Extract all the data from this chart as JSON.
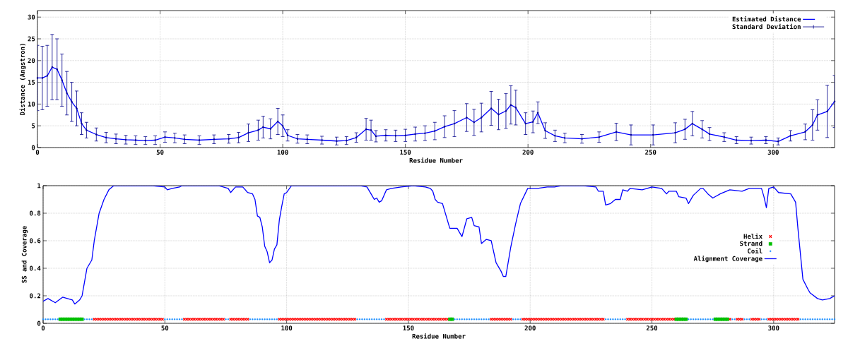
{
  "chart_data": [
    {
      "type": "line",
      "xlabel": "Residue Number",
      "ylabel": "Distance (Angstron)",
      "xlim": [
        0,
        325
      ],
      "ylim": [
        0,
        31.5
      ],
      "xticks": [
        0,
        50,
        100,
        150,
        200,
        250,
        300
      ],
      "yticks": [
        0,
        5,
        10,
        15,
        20,
        25,
        30
      ],
      "grid": true,
      "legend": "top right",
      "series": [
        {
          "name": "Estimated Distance",
          "color": "#0000ff",
          "marker": "none",
          "x": [
            0,
            2,
            4,
            6,
            8,
            10,
            12,
            14,
            16,
            18,
            20,
            24,
            28,
            32,
            36,
            40,
            44,
            48,
            52,
            56,
            60,
            66,
            72,
            78,
            82,
            86,
            90,
            92,
            95,
            98,
            100,
            102,
            106,
            110,
            116,
            122,
            126,
            130,
            134,
            136,
            138,
            142,
            146,
            150,
            154,
            158,
            162,
            166,
            170,
            175,
            178,
            181,
            185,
            188,
            191,
            193,
            195,
            199,
            202,
            204,
            207,
            211,
            215,
            222,
            229,
            236,
            242,
            251,
            260,
            264,
            267,
            271,
            274,
            280,
            285,
            291,
            297,
            302,
            307,
            313,
            316,
            318,
            322,
            325
          ],
          "values": [
            16,
            16,
            16.5,
            18.5,
            18,
            15.5,
            12.5,
            10.5,
            9,
            5.5,
            4,
            3,
            2.3,
            2,
            1.8,
            1.7,
            1.6,
            1.7,
            2.4,
            2.2,
            1.9,
            1.7,
            1.9,
            2,
            2.3,
            3.4,
            4,
            4.7,
            4.3,
            6,
            5,
            2.8,
            2,
            1.9,
            1.7,
            1.5,
            1.6,
            2.3,
            4.2,
            4,
            2.6,
            2.8,
            2.7,
            2.8,
            3.1,
            3.3,
            3.8,
            4.8,
            5.5,
            6.9,
            5.8,
            6.9,
            9,
            7.6,
            8.4,
            9.8,
            9.2,
            5.5,
            5.9,
            8,
            3.9,
            2.7,
            2.2,
            2,
            2.4,
            3.6,
            2.9,
            2.9,
            3.4,
            4.2,
            5.5,
            4.2,
            3.1,
            2.4,
            1.7,
            1.6,
            1.7,
            1.4,
            2.7,
            3.6,
            5.2,
            7.5,
            8.3,
            10.6
          ]
        },
        {
          "name": "Standard Deviation",
          "type": "scatter",
          "color": "#00008b",
          "marker": "circle",
          "x": [
            0,
            2,
            4,
            6,
            8,
            10,
            12,
            14,
            16,
            18,
            20,
            24,
            28,
            32,
            36,
            40,
            44,
            48,
            52,
            56,
            60,
            66,
            72,
            78,
            82,
            86,
            90,
            92,
            95,
            98,
            100,
            102,
            106,
            110,
            116,
            122,
            126,
            130,
            134,
            136,
            138,
            142,
            146,
            150,
            154,
            158,
            162,
            166,
            170,
            175,
            178,
            181,
            185,
            188,
            191,
            193,
            195,
            199,
            202,
            204,
            207,
            211,
            215,
            222,
            229,
            236,
            242,
            251,
            260,
            264,
            267,
            271,
            274,
            280,
            285,
            291,
            297,
            302,
            307,
            313,
            316,
            318,
            322,
            325
          ],
          "values": [
            16,
            16,
            16.5,
            18.5,
            18,
            15.5,
            12.5,
            10.5,
            9,
            5.5,
            4,
            3,
            2.3,
            2,
            1.8,
            1.7,
            1.6,
            1.7,
            2.4,
            2.2,
            1.9,
            1.7,
            1.9,
            2,
            2.3,
            3.4,
            4,
            4.7,
            4.3,
            6,
            5,
            2.8,
            2,
            1.9,
            1.7,
            1.5,
            1.6,
            2.3,
            4.2,
            4,
            2.6,
            2.8,
            2.7,
            2.8,
            3.1,
            3.3,
            3.8,
            4.8,
            5.5,
            6.9,
            5.8,
            6.9,
            9,
            7.6,
            8.4,
            9.8,
            9.2,
            5.5,
            5.9,
            8,
            3.9,
            2.7,
            2.2,
            2,
            2.4,
            3.6,
            2.9,
            2.9,
            3.4,
            4.2,
            5.5,
            4.2,
            3.1,
            2.4,
            1.7,
            1.6,
            1.7,
            1.4,
            2.7,
            3.6,
            5.2,
            7.5,
            8.3,
            10.6
          ],
          "errors": [
            7.5,
            7.3,
            7,
            7.5,
            7,
            6,
            5,
            4.5,
            4,
            2.5,
            1.8,
            1.5,
            1.2,
            1.1,
            1,
            1,
            0.9,
            1,
            1.2,
            1.1,
            1,
            1,
            1,
            1,
            1.2,
            2,
            2.3,
            2.5,
            2.3,
            3,
            2.5,
            1.3,
            1,
            1,
            0.9,
            0.9,
            0.9,
            1.1,
            2.5,
            2.3,
            1.3,
            1.3,
            1.3,
            1.4,
            1.6,
            1.7,
            2,
            2.5,
            3,
            3.2,
            3,
            3.3,
            3.9,
            3.5,
            4,
            4.4,
            4,
            2.5,
            2.5,
            2.5,
            1.8,
            1.3,
            1.1,
            1,
            1.2,
            2,
            2.3,
            2.3,
            2.3,
            2.3,
            2.8,
            2,
            1.5,
            1,
            0.8,
            0.8,
            0.8,
            0.8,
            1.2,
            1.8,
            3.5,
            3.5,
            6,
            6
          ]
        }
      ]
    },
    {
      "type": "line",
      "xlabel": "Residue Number",
      "ylabel": "SS and Coverage",
      "xlim": [
        0,
        325
      ],
      "ylim": [
        0,
        1
      ],
      "xticks": [
        0,
        50,
        100,
        150,
        200,
        250,
        300
      ],
      "yticks": [
        0,
        0.2,
        0.4,
        0.6,
        0.8,
        1
      ],
      "grid": true,
      "legend": "right",
      "series": [
        {
          "name": "Helix",
          "type": "scatter",
          "color": "#ff0000",
          "marker": "cross",
          "x": [
            21,
            22,
            23,
            24,
            25,
            26,
            27,
            28,
            29,
            30,
            31,
            32,
            33,
            34,
            35,
            36,
            37,
            38,
            39,
            40,
            41,
            42,
            43,
            44,
            45,
            46,
            47,
            48,
            49,
            58,
            59,
            60,
            61,
            62,
            63,
            64,
            65,
            66,
            67,
            68,
            69,
            70,
            71,
            72,
            73,
            74,
            77,
            78,
            79,
            80,
            81,
            82,
            83,
            84,
            97,
            98,
            99,
            100,
            101,
            102,
            103,
            104,
            105,
            106,
            107,
            108,
            109,
            110,
            111,
            112,
            113,
            114,
            115,
            116,
            117,
            118,
            119,
            120,
            121,
            122,
            123,
            124,
            125,
            126,
            127,
            128,
            141,
            142,
            143,
            144,
            145,
            146,
            147,
            148,
            149,
            150,
            151,
            152,
            153,
            154,
            155,
            156,
            157,
            158,
            159,
            160,
            161,
            162,
            163,
            164,
            165,
            166,
            184,
            185,
            186,
            187,
            188,
            189,
            190,
            191,
            192,
            197,
            198,
            199,
            200,
            201,
            202,
            203,
            204,
            205,
            206,
            207,
            208,
            209,
            210,
            211,
            212,
            213,
            214,
            215,
            216,
            217,
            218,
            219,
            220,
            221,
            222,
            223,
            224,
            225,
            226,
            227,
            228,
            229,
            230,
            240,
            241,
            242,
            243,
            244,
            245,
            246,
            247,
            248,
            249,
            250,
            251,
            252,
            253,
            254,
            255,
            256,
            257,
            258,
            259,
            282,
            285,
            286,
            287,
            291,
            292,
            293,
            294,
            298,
            299,
            300,
            301,
            302,
            303,
            304,
            305,
            306,
            307,
            308,
            309,
            310
          ],
          "values": [
            0.03,
            0.03,
            0.03,
            0.03,
            0.03,
            0.03,
            0.03,
            0.03,
            0.03,
            0.03,
            0.03,
            0.03,
            0.03,
            0.03,
            0.03,
            0.03,
            0.03,
            0.03,
            0.03,
            0.03,
            0.03,
            0.03,
            0.03,
            0.03,
            0.03,
            0.03,
            0.03,
            0.03,
            0.03,
            0.03,
            0.03,
            0.03,
            0.03,
            0.03,
            0.03,
            0.03,
            0.03,
            0.03,
            0.03,
            0.03,
            0.03,
            0.03,
            0.03,
            0.03,
            0.03,
            0.03,
            0.03,
            0.03,
            0.03,
            0.03,
            0.03,
            0.03,
            0.03,
            0.03,
            0.03,
            0.03,
            0.03,
            0.03,
            0.03,
            0.03,
            0.03,
            0.03,
            0.03,
            0.03,
            0.03,
            0.03,
            0.03,
            0.03,
            0.03,
            0.03,
            0.03,
            0.03,
            0.03,
            0.03,
            0.03,
            0.03,
            0.03,
            0.03,
            0.03,
            0.03,
            0.03,
            0.03,
            0.03,
            0.03,
            0.03,
            0.03,
            0.03,
            0.03,
            0.03,
            0.03,
            0.03,
            0.03,
            0.03,
            0.03,
            0.03,
            0.03,
            0.03,
            0.03,
            0.03,
            0.03,
            0.03,
            0.03,
            0.03,
            0.03,
            0.03,
            0.03,
            0.03,
            0.03,
            0.03,
            0.03,
            0.03,
            0.03,
            0.03,
            0.03,
            0.03,
            0.03,
            0.03,
            0.03,
            0.03,
            0.03,
            0.03,
            0.03,
            0.03,
            0.03,
            0.03,
            0.03,
            0.03,
            0.03,
            0.03,
            0.03,
            0.03,
            0.03,
            0.03,
            0.03,
            0.03,
            0.03,
            0.03,
            0.03,
            0.03,
            0.03,
            0.03,
            0.03,
            0.03,
            0.03,
            0.03,
            0.03,
            0.03,
            0.03,
            0.03,
            0.03,
            0.03,
            0.03,
            0.03,
            0.03,
            0.03,
            0.03,
            0.03,
            0.03,
            0.03,
            0.03,
            0.03,
            0.03,
            0.03,
            0.03,
            0.03,
            0.03,
            0.03,
            0.03,
            0.03,
            0.03,
            0.03,
            0.03,
            0.03,
            0.03,
            0.03,
            0.03,
            0.03,
            0.03,
            0.03,
            0.03,
            0.03,
            0.03,
            0.03,
            0.03,
            0.03,
            0.03,
            0.03,
            0.03,
            0.03,
            0.03,
            0.03,
            0.03,
            0.03,
            0.03,
            0.03,
            0.03
          ]
        },
        {
          "name": "Strand",
          "type": "scatter",
          "color": "#00c000",
          "marker": "square",
          "x": [
            7,
            8,
            9,
            10,
            11,
            12,
            13,
            14,
            15,
            16,
            167,
            168,
            260,
            261,
            262,
            263,
            264,
            276,
            277,
            278,
            279,
            280,
            281
          ],
          "values": [
            0.03,
            0.03,
            0.03,
            0.03,
            0.03,
            0.03,
            0.03,
            0.03,
            0.03,
            0.03,
            0.03,
            0.03,
            0.03,
            0.03,
            0.03,
            0.03,
            0.03,
            0.03,
            0.03,
            0.03,
            0.03,
            0.03,
            0.03
          ]
        },
        {
          "name": "Coil",
          "type": "scatter",
          "color": "#1e90ff",
          "marker": "circle",
          "x": [
            0,
            1,
            2,
            3,
            4,
            5,
            6,
            17,
            18,
            19,
            20,
            50,
            51,
            52,
            53,
            54,
            55,
            56,
            57,
            75,
            76,
            85,
            86,
            87,
            88,
            89,
            90,
            91,
            92,
            93,
            94,
            95,
            96,
            129,
            130,
            131,
            132,
            133,
            134,
            135,
            136,
            137,
            138,
            139,
            140,
            169,
            170,
            171,
            172,
            173,
            174,
            175,
            176,
            177,
            178,
            179,
            180,
            181,
            182,
            183,
            193,
            194,
            195,
            196,
            231,
            232,
            233,
            234,
            235,
            236,
            237,
            238,
            239,
            265,
            266,
            267,
            268,
            269,
            270,
            271,
            272,
            273,
            274,
            275,
            283,
            284,
            288,
            289,
            290,
            295,
            296,
            297,
            311,
            312,
            313,
            314,
            315,
            316,
            317,
            318,
            319,
            320,
            321,
            322,
            323,
            324,
            325
          ],
          "values": [
            0.03,
            0.03,
            0.03,
            0.03,
            0.03,
            0.03,
            0.03,
            0.03,
            0.03,
            0.03,
            0.03,
            0.03,
            0.03,
            0.03,
            0.03,
            0.03,
            0.03,
            0.03,
            0.03,
            0.03,
            0.03,
            0.03,
            0.03,
            0.03,
            0.03,
            0.03,
            0.03,
            0.03,
            0.03,
            0.03,
            0.03,
            0.03,
            0.03,
            0.03,
            0.03,
            0.03,
            0.03,
            0.03,
            0.03,
            0.03,
            0.03,
            0.03,
            0.03,
            0.03,
            0.03,
            0.03,
            0.03,
            0.03,
            0.03,
            0.03,
            0.03,
            0.03,
            0.03,
            0.03,
            0.03,
            0.03,
            0.03,
            0.03,
            0.03,
            0.03,
            0.03,
            0.03,
            0.03,
            0.03,
            0.03,
            0.03,
            0.03,
            0.03,
            0.03,
            0.03,
            0.03,
            0.03,
            0.03,
            0.03,
            0.03,
            0.03,
            0.03,
            0.03,
            0.03,
            0.03,
            0.03,
            0.03,
            0.03,
            0.03,
            0.03,
            0.03,
            0.03,
            0.03,
            0.03,
            0.03,
            0.03,
            0.03,
            0.03,
            0.03,
            0.03,
            0.03,
            0.03,
            0.03,
            0.03,
            0.03,
            0.03,
            0.03,
            0.03,
            0.03,
            0.03,
            0.03,
            0.03
          ]
        },
        {
          "name": "Alignment Coverage",
          "color": "#0000ff",
          "marker": "none",
          "x": [
            0,
            2,
            5,
            8,
            10,
            12,
            13,
            15,
            16,
            18,
            20,
            21,
            23,
            25,
            27,
            29,
            45,
            50,
            51,
            53,
            56,
            57,
            72,
            76,
            77,
            79,
            82,
            84,
            86,
            87,
            88,
            89,
            90,
            91,
            92,
            93,
            94,
            95,
            96,
            97,
            98,
            99,
            100,
            102,
            130,
            133,
            135,
            136,
            137,
            138,
            139,
            141,
            143,
            147,
            152,
            157,
            159,
            160,
            161,
            162,
            164,
            167,
            170,
            172,
            174,
            176,
            177,
            179,
            180,
            182,
            184,
            186,
            188,
            189,
            190,
            192,
            194,
            196,
            199,
            203,
            207,
            210,
            213,
            222,
            227,
            228,
            230,
            231,
            233,
            235,
            237,
            238,
            240,
            241,
            246,
            250,
            254,
            256,
            257,
            260,
            261,
            264,
            265,
            267,
            270,
            271,
            273,
            275,
            278,
            282,
            287,
            290,
            295,
            296,
            297,
            298,
            300,
            302,
            307,
            309,
            310,
            312,
            314,
            315,
            318,
            320,
            323,
            325
          ],
          "values": [
            0.16,
            0.18,
            0.15,
            0.19,
            0.18,
            0.17,
            0.14,
            0.17,
            0.2,
            0.4,
            0.46,
            0.6,
            0.8,
            0.9,
            0.97,
            1,
            1,
            0.99,
            0.97,
            0.98,
            0.99,
            1,
            1,
            0.98,
            0.95,
            0.99,
            0.99,
            0.95,
            0.94,
            0.9,
            0.78,
            0.77,
            0.7,
            0.56,
            0.52,
            0.44,
            0.46,
            0.54,
            0.57,
            0.75,
            0.85,
            0.94,
            0.95,
            1,
            1,
            0.99,
            0.93,
            0.9,
            0.91,
            0.88,
            0.89,
            0.97,
            0.98,
            0.99,
            1,
            0.99,
            0.98,
            0.96,
            0.9,
            0.88,
            0.87,
            0.69,
            0.69,
            0.63,
            0.76,
            0.77,
            0.71,
            0.7,
            0.58,
            0.61,
            0.6,
            0.44,
            0.38,
            0.34,
            0.34,
            0.55,
            0.72,
            0.87,
            0.98,
            0.98,
            0.99,
            0.99,
            1,
            1,
            0.99,
            0.96,
            0.96,
            0.86,
            0.87,
            0.9,
            0.9,
            0.97,
            0.96,
            0.98,
            0.97,
            0.99,
            0.98,
            0.94,
            0.96,
            0.96,
            0.92,
            0.91,
            0.87,
            0.93,
            0.98,
            0.98,
            0.94,
            0.91,
            0.94,
            0.97,
            0.96,
            0.98,
            0.98,
            0.92,
            0.84,
            0.98,
            0.99,
            0.95,
            0.94,
            0.88,
            0.68,
            0.32,
            0.25,
            0.22,
            0.18,
            0.17,
            0.18,
            0.2
          ]
        }
      ]
    }
  ]
}
